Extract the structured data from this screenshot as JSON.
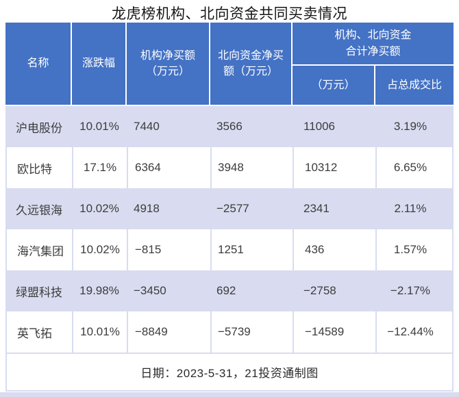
{
  "title": "龙虎榜机构、北向资金共同买卖情况",
  "colors": {
    "header_bg": "#4472C4",
    "header_text": "#FFFFFF",
    "row_alt_bg": "#D9DCF0",
    "row_bg": "#FFFFFF",
    "body_text": "#3C3C3C",
    "title_text": "#161616"
  },
  "table": {
    "headers": {
      "name": "名称",
      "change": "涨跌幅",
      "inst_net": "机构净买额\n（万元）",
      "north_net": "北向资金净买\n额（万元）",
      "combined_group": "机构、北向资金\n合计净买额",
      "combined_amount": "（万元）",
      "combined_pct": "占总成交比"
    },
    "rows": [
      {
        "name": "沪电股份",
        "change": "10.01%",
        "inst_net": "7440",
        "north_net": "3566",
        "total_net": "11006",
        "pct": "3.19%"
      },
      {
        "name": "欧比特",
        "change": "17.1%",
        "inst_net": "6364",
        "north_net": "3948",
        "total_net": "10312",
        "pct": "6.65%"
      },
      {
        "name": "久远银海",
        "change": "10.02%",
        "inst_net": "4918",
        "north_net": "−2577",
        "total_net": "2341",
        "pct": "2.11%"
      },
      {
        "name": "海汽集团",
        "change": "10.02%",
        "inst_net": "−815",
        "north_net": "1251",
        "total_net": "436",
        "pct": "1.57%"
      },
      {
        "name": "绿盟科技",
        "change": "19.98%",
        "inst_net": "−3450",
        "north_net": "692",
        "total_net": "−2758",
        "pct": "−2.17%"
      },
      {
        "name": "英飞拓",
        "change": "10.01%",
        "inst_net": "−8849",
        "north_net": "−5739",
        "total_net": "−14589",
        "pct": "−12.44%"
      }
    ],
    "footer": "日期：2023-5-31，21投资通制图"
  },
  "chart_data": {
    "type": "table",
    "title": "龙虎榜机构、北向资金共同买卖情况",
    "columns": [
      "名称",
      "涨跌幅",
      "机构净买额（万元）",
      "北向资金净买额（万元）",
      "机构、北向资金合计净买额（万元）",
      "机构、北向资金合计净买额占总成交比"
    ],
    "rows": [
      [
        "沪电股份",
        "10.01%",
        7440,
        3566,
        11006,
        "3.19%"
      ],
      [
        "欧比特",
        "17.1%",
        6364,
        3948,
        10312,
        "6.65%"
      ],
      [
        "久远银海",
        "10.02%",
        4918,
        -2577,
        2341,
        "2.11%"
      ],
      [
        "海汽集团",
        "10.02%",
        -815,
        1251,
        436,
        "1.57%"
      ],
      [
        "绿盟科技",
        "19.98%",
        -3450,
        692,
        -2758,
        "-2.17%"
      ],
      [
        "英飞拓",
        "10.01%",
        -8849,
        -5739,
        -14589,
        "-12.44%"
      ]
    ],
    "footnote": "日期：2023-5-31，21投资通制图",
    "layout": {
      "header_rows": 2,
      "merged_header": "机构、北向资金合计净买额 spans last two columns",
      "zebra": true
    }
  }
}
